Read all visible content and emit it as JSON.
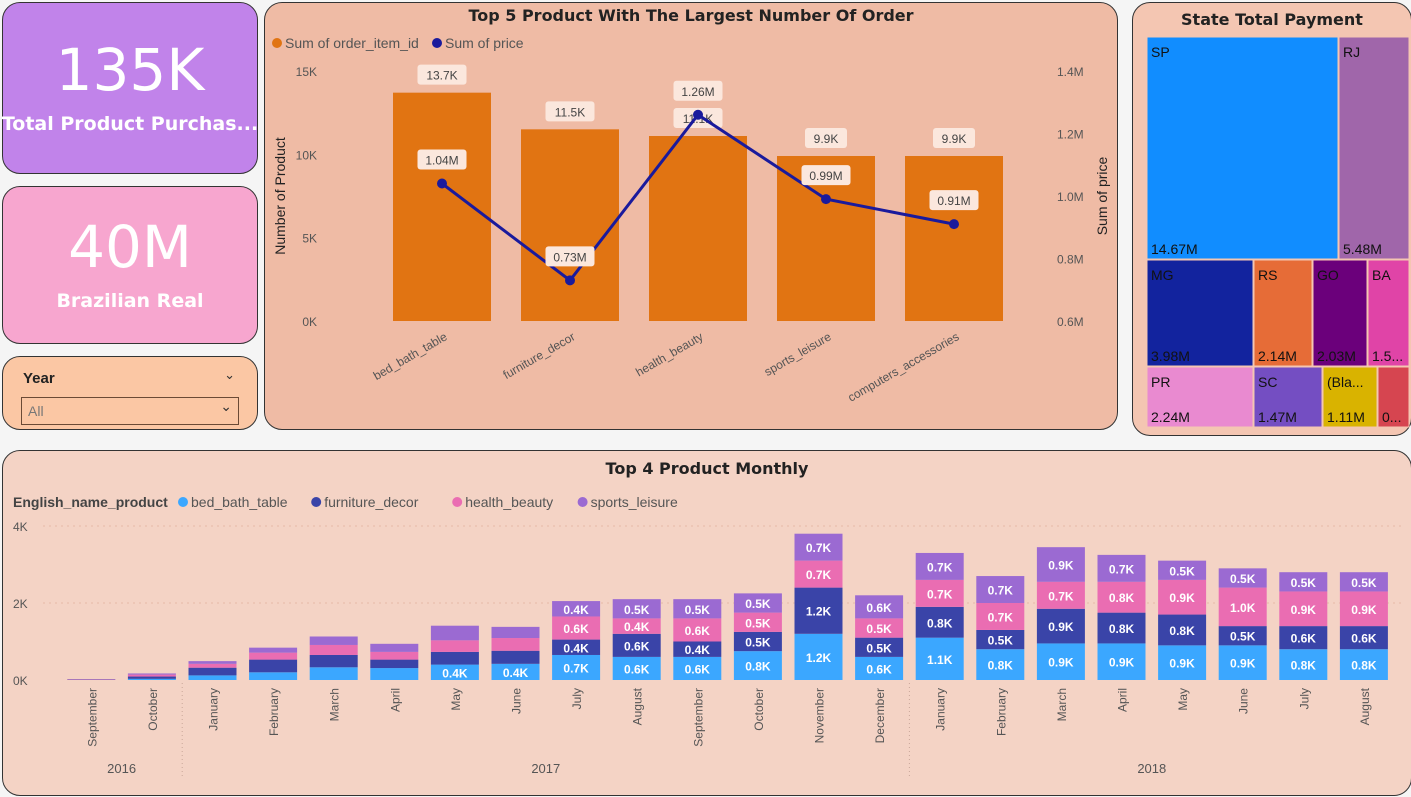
{
  "kpis": {
    "products": {
      "value": "135K",
      "label": "Total Product Purchas..."
    },
    "revenue": {
      "value": "40M",
      "label": "Brazilian Real"
    }
  },
  "slicer": {
    "title": "Year",
    "value": "All"
  },
  "colors": {
    "kpi1": "#c183ea",
    "kpi2": "#f7a6cf",
    "slicer_bg": "#fbc7a4",
    "top_card": "#efbba5",
    "treemap_card": "#f4c6b2",
    "monthly_card": "#f4d3c5",
    "bar": "#e17412",
    "line": "#1a1a9c",
    "bed_bath_table": "#3ba7ff",
    "furniture_decor": "#3a44a8",
    "health_beauty": "#ea6db2",
    "sports_leisure": "#9b6ad2"
  },
  "top5": {
    "title": "Top 5 Product With The Largest Number Of Order",
    "legend": [
      "Sum of order_item_id",
      "Sum of price"
    ],
    "ylabel_left": "Number of Product",
    "ylabel_right": "Sum of price",
    "left_ticks": [
      "0K",
      "5K",
      "10K",
      "15K"
    ],
    "right_ticks": [
      "0.6M",
      "0.8M",
      "1.0M",
      "1.2M",
      "1.4M"
    ]
  },
  "treemap": {
    "title": "State Total Payment",
    "cells": [
      {
        "state": "SP",
        "value": "14.67M",
        "color": "#118dff"
      },
      {
        "state": "RJ",
        "value": "5.48M",
        "color": "#a066aa"
      },
      {
        "state": "MG",
        "value": "3.98M",
        "color": "#12239e"
      },
      {
        "state": "RS",
        "value": "2.14M",
        "color": "#e66c37"
      },
      {
        "state": "GO",
        "value": "2.03M",
        "color": "#6b007b"
      },
      {
        "state": "BA",
        "value": "1.5...",
        "color": "#e044a7"
      },
      {
        "state": "PR",
        "value": "2.24M",
        "color": "#e98ad0"
      },
      {
        "state": "SC",
        "value": "1.47M",
        "color": "#744ec2"
      },
      {
        "state": "(Bla...",
        "value": "1.11M",
        "color": "#d9b300"
      },
      {
        "state": "",
        "value": "0...",
        "color": "#d64550"
      }
    ]
  },
  "monthly": {
    "title": "Top 4 Product Monthly",
    "legend_title": "English_name_product",
    "y_ticks": [
      "0K",
      "2K",
      "4K"
    ],
    "years": [
      "2016",
      "2017",
      "2018"
    ]
  },
  "chart_data": [
    {
      "type": "bar",
      "title": "Top 5 Product With The Largest Number Of Order",
      "categories": [
        "bed_bath_table",
        "furniture_decor",
        "health_beauty",
        "sports_leisure",
        "computers_accessories"
      ],
      "series": [
        {
          "name": "Sum of order_item_id",
          "type": "bar",
          "axis": "left",
          "values": [
            13700,
            11500,
            11100,
            9900,
            9900
          ],
          "labels": [
            "13.7K",
            "11.5K",
            "11.1K",
            "9.9K",
            "9.9K"
          ]
        },
        {
          "name": "Sum of price",
          "type": "line",
          "axis": "right",
          "values": [
            1.04,
            0.73,
            1.26,
            0.99,
            0.91
          ],
          "labels": [
            "1.04M",
            "0.73M",
            "1.26M",
            "0.99M",
            "0.91M"
          ]
        }
      ],
      "xlabel": "",
      "ylabel": "Number of Product",
      "y2label": "Sum of price",
      "ylim": [
        0,
        15000
      ],
      "y2lim": [
        0.6,
        1.4
      ]
    },
    {
      "type": "bar",
      "stacked": true,
      "title": "Top 4 Product Monthly",
      "categories": [
        "September",
        "October",
        "January",
        "February",
        "March",
        "April",
        "May",
        "June",
        "July",
        "August",
        "September",
        "October",
        "November",
        "December",
        "January",
        "February",
        "March",
        "April",
        "May",
        "June",
        "July",
        "August"
      ],
      "year_of_category": [
        "2016",
        "2016",
        "2017",
        "2017",
        "2017",
        "2017",
        "2017",
        "2017",
        "2017",
        "2017",
        "2017",
        "2017",
        "2017",
        "2017",
        "2018",
        "2018",
        "2018",
        "2018",
        "2018",
        "2018",
        "2018",
        "2018"
      ],
      "series": [
        {
          "name": "bed_bath_table",
          "values": [
            0,
            30,
            120,
            200,
            330,
            310,
            400,
            420,
            650,
            600,
            600,
            750,
            1200,
            600,
            1100,
            800,
            950,
            950,
            900,
            900,
            800,
            800
          ]
        },
        {
          "name": "furniture_decor",
          "values": [
            10,
            60,
            200,
            330,
            320,
            220,
            330,
            340,
            400,
            600,
            400,
            500,
            1200,
            500,
            800,
            500,
            900,
            800,
            800,
            500,
            600,
            600
          ]
        },
        {
          "name": "health_beauty",
          "values": [
            10,
            50,
            100,
            180,
            260,
            200,
            300,
            330,
            600,
            400,
            600,
            500,
            700,
            500,
            700,
            700,
            700,
            800,
            900,
            1000,
            900,
            900
          ]
        },
        {
          "name": "sports_leisure",
          "values": [
            5,
            30,
            70,
            130,
            220,
            210,
            380,
            290,
            400,
            500,
            500,
            500,
            700,
            600,
            700,
            700,
            900,
            700,
            500,
            500,
            500,
            500
          ]
        }
      ],
      "ylim": [
        0,
        4000
      ]
    }
  ]
}
